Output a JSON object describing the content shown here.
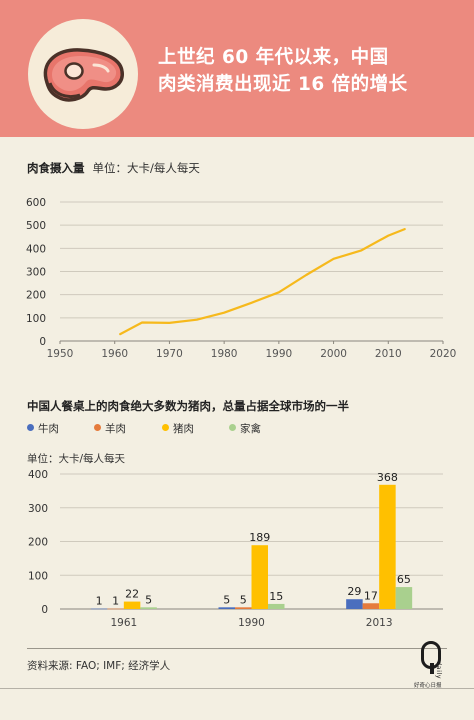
{
  "header": {
    "title_line1": "上世纪 60 年代以来，中国",
    "title_line2": "肉类消费出现近 16 倍的增长"
  },
  "colors": {
    "header_bg": "#ec8a7f",
    "page_bg": "#f3efe2",
    "line": "#f6b91c",
    "beef": "#4a6ebe",
    "mutton": "#e57b3c",
    "pork": "#ffc000",
    "poultry": "#a9d08e"
  },
  "chart1": {
    "heading": "肉食摄入量",
    "unit": "单位：大卡/每人每天"
  },
  "chart2": {
    "heading": "中国人餐桌上的肉食绝大多数为猪肉，总量占据全球市场的一半",
    "unit": "单位：大卡/每人每天"
  },
  "chart_data": [
    {
      "type": "line",
      "title": "肉食摄入量",
      "ylabel": "单位：大卡/每人每天",
      "xlim": [
        1950,
        2020
      ],
      "ylim": [
        0,
        600
      ],
      "xticks": [
        1950,
        1960,
        1970,
        1980,
        1990,
        2000,
        2010,
        2020
      ],
      "yticks": [
        0,
        100,
        200,
        300,
        400,
        500,
        600
      ],
      "grid": "horizontal",
      "series": [
        {
          "x": [
            1961,
            1965,
            1970,
            1975,
            1980,
            1985,
            1990,
            1995,
            2000,
            2005,
            2010,
            2013
          ],
          "values": [
            30,
            80,
            78,
            92,
            122,
            165,
            210,
            285,
            355,
            390,
            455,
            483
          ]
        }
      ]
    },
    {
      "type": "bar",
      "title": "中国人餐桌上的肉食绝大多数为猪肉，总量占据全球市场的一半",
      "ylabel": "单位：大卡/每人每天",
      "categories": [
        "1961",
        "1990",
        "2013"
      ],
      "ylim": [
        0,
        400
      ],
      "yticks": [
        0,
        100,
        200,
        300,
        400
      ],
      "grid": "horizontal",
      "legend": "top-left",
      "series": [
        {
          "name": "牛肉",
          "color": "#4a6ebe",
          "values": [
            1,
            5,
            29
          ]
        },
        {
          "name": "羊肉",
          "color": "#e57b3c",
          "values": [
            1,
            5,
            17
          ]
        },
        {
          "name": "猪肉",
          "color": "#ffc000",
          "values": [
            22,
            189,
            368
          ]
        },
        {
          "name": "家禽",
          "color": "#a9d08e",
          "values": [
            5,
            15,
            65
          ]
        }
      ]
    }
  ],
  "footer": {
    "source": "资料来源: FAO; IMF; 经济学人",
    "logo_letter": "Q",
    "logo_word": "daily",
    "logo_sub": "好奇心日报"
  }
}
